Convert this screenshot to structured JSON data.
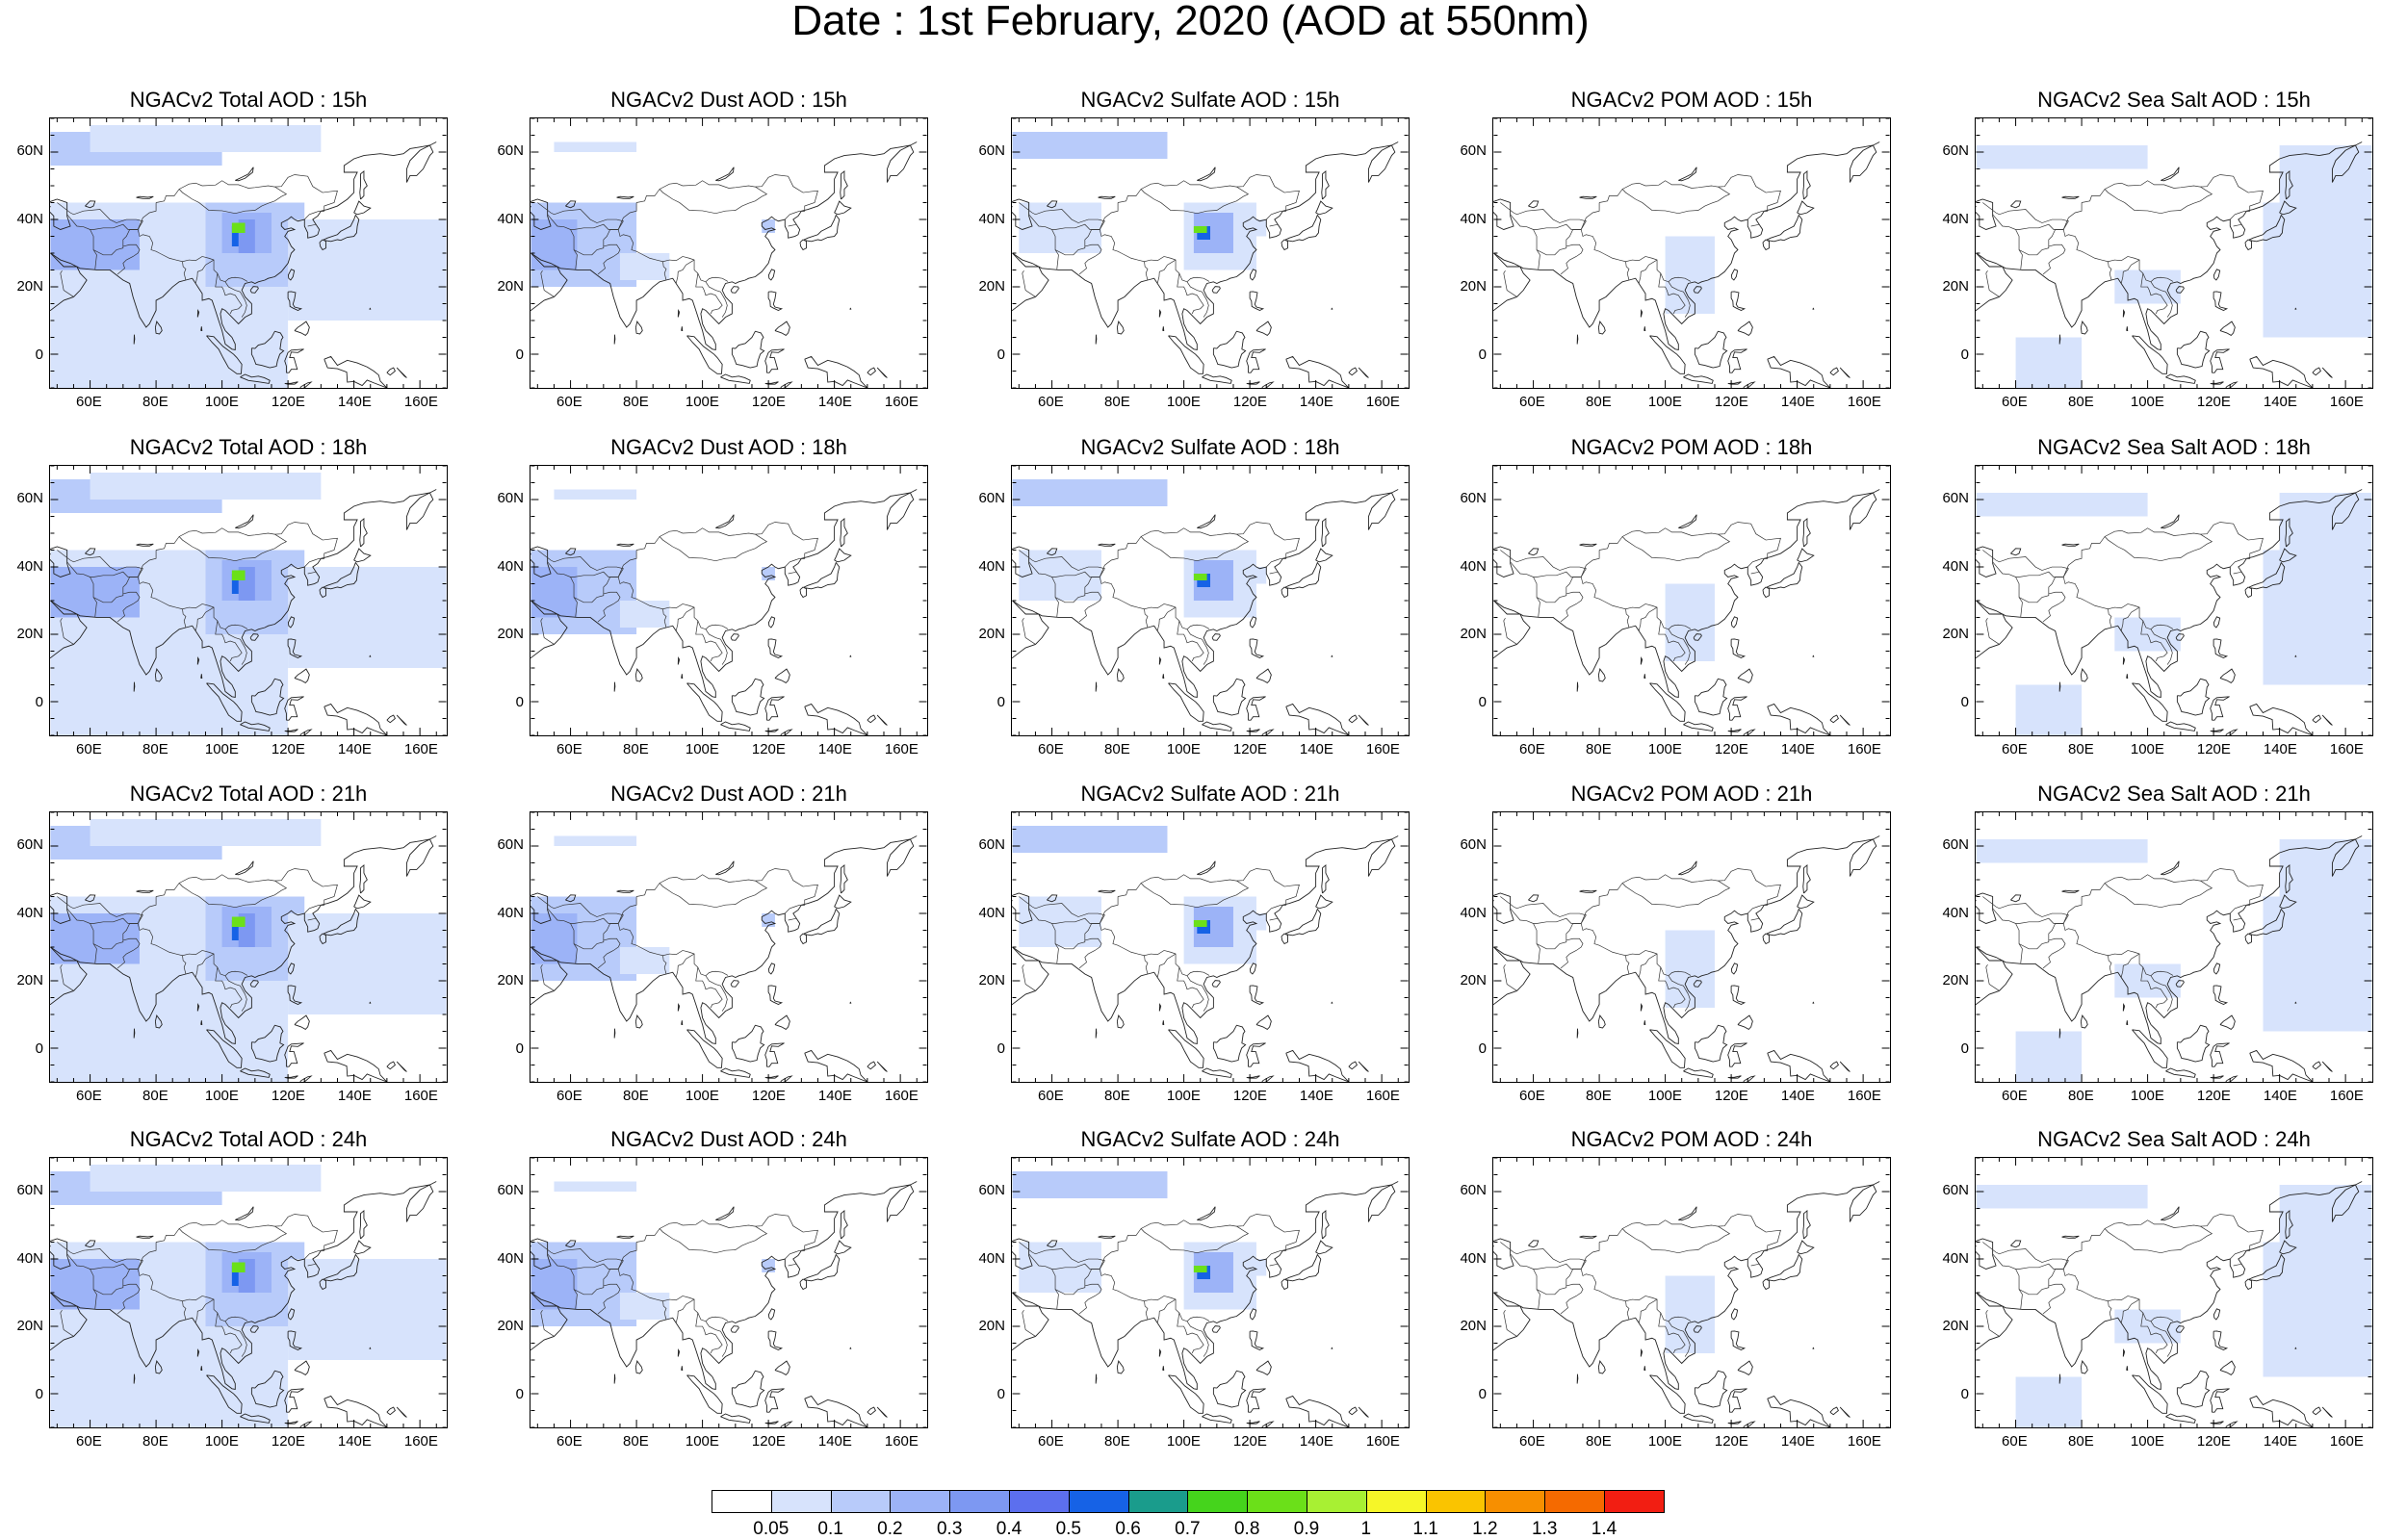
{
  "title": "Date : 1st February, 2020 (AOD at 550nm)",
  "rows": [
    [
      "NGACv2 Total AOD : 15h",
      "NGACv2 Dust AOD : 15h",
      "NGACv2 Sulfate AOD : 15h",
      "NGACv2 POM AOD : 15h",
      "NGACv2 Sea Salt AOD : 15h"
    ],
    [
      "NGACv2 Total AOD : 18h",
      "NGACv2 Dust AOD : 18h",
      "NGACv2 Sulfate AOD : 18h",
      "NGACv2 POM AOD : 18h",
      "NGACv2 Sea Salt AOD : 18h"
    ],
    [
      "NGACv2 Total AOD : 21h",
      "NGACv2 Dust AOD : 21h",
      "NGACv2 Sulfate AOD : 21h",
      "NGACv2 POM AOD : 21h",
      "NGACv2 Sea Salt AOD : 21h"
    ],
    [
      "NGACv2 Total AOD : 24h",
      "NGACv2 Dust AOD : 24h",
      "NGACv2 Sulfate AOD : 24h",
      "NGACv2 POM AOD : 24h",
      "NGACv2 Sea Salt  AOD : 24h"
    ]
  ],
  "lat_ticks": [
    "60N",
    "40N",
    "20N",
    "0"
  ],
  "lon_ticks": [
    "60E",
    "80E",
    "100E",
    "120E",
    "140E",
    "160E"
  ],
  "colorbar": {
    "labels": [
      "0.05",
      "0.1",
      "0.2",
      "0.3",
      "0.4",
      "0.5",
      "0.6",
      "0.7",
      "0.8",
      "0.9",
      "1",
      "1.1",
      "1.2",
      "1.3",
      "1.4"
    ],
    "colors": [
      "#ffffff",
      "#d7e3fc",
      "#b8cbfa",
      "#9cb3f7",
      "#7d98f2",
      "#5c6fee",
      "#1662e6",
      "#1a9c8c",
      "#45d41c",
      "#6be019",
      "#a8f033",
      "#f6f628",
      "#fac400",
      "#f78f00",
      "#f56a00",
      "#f21e12"
    ]
  }
}
